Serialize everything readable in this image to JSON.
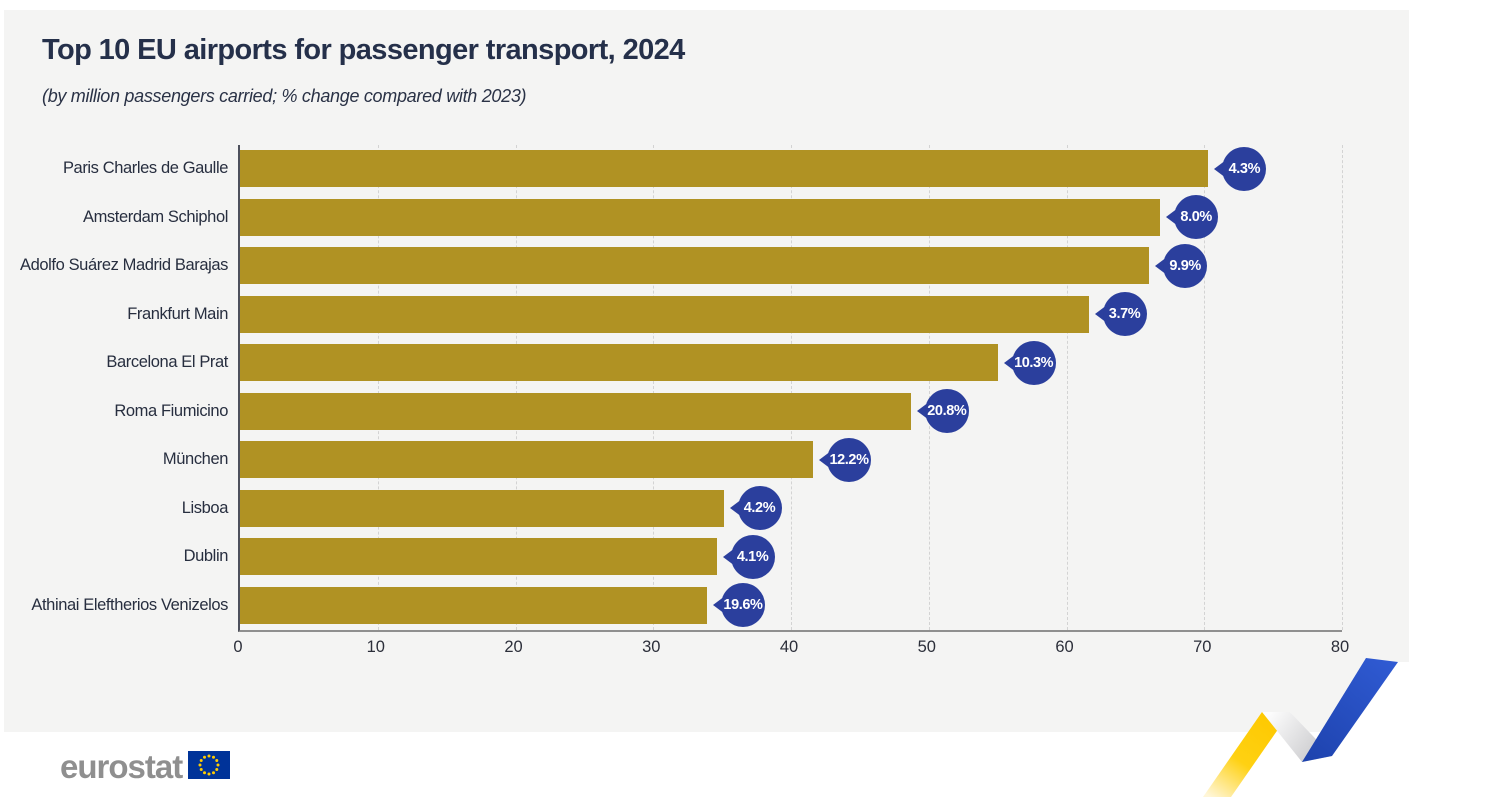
{
  "title": "Top 10 EU airports for passenger transport, 2024",
  "subtitle": "(by million passengers carried; % change compared with 2023)",
  "chart_data": {
    "type": "bar",
    "orientation": "horizontal",
    "categories": [
      "Paris Charles de Gaulle",
      "Amsterdam Schiphol",
      "Adolfo Suárez Madrid Barajas",
      "Frankfurt Main",
      "Barcelona El Prat",
      "Roma Fiumicino",
      "München",
      "Lisboa",
      "Dublin",
      "Athinai Eleftherios Venizelos"
    ],
    "series": [
      {
        "name": "million passengers carried",
        "values": [
          70.3,
          66.8,
          66.0,
          61.6,
          55.0,
          48.7,
          41.6,
          35.1,
          34.6,
          33.9
        ]
      },
      {
        "name": "% change compared with 2023",
        "values": [
          4.3,
          8.0,
          9.9,
          3.7,
          10.3,
          20.8,
          12.2,
          4.2,
          4.1,
          19.6
        ]
      }
    ],
    "badge_labels": [
      "4.3%",
      "8.0%",
      "9.9%",
      "3.7%",
      "10.3%",
      "20.8%",
      "12.2%",
      "4.2%",
      "4.1%",
      "19.6%"
    ],
    "xlabel": "",
    "ylabel": "",
    "xlim": [
      0,
      80
    ],
    "x_ticks": [
      0,
      10,
      20,
      30,
      40,
      50,
      60,
      70,
      80
    ],
    "grid": "vertical-dashed",
    "legend": "none"
  },
  "colors": {
    "bar": "#b09223",
    "badge": "#2b3f9d",
    "badge_text": "#ffffff",
    "card_background": "#f4f4f3",
    "title_text": "#25304a",
    "grid_line": "#d3d3d3",
    "axis_left": "#4d505c",
    "axis_bottom": "#8f8f8f",
    "ribbon_yellow": "#ffd112",
    "ribbon_blue": "#2a51c8",
    "eu_flag_blue": "#003399",
    "eu_flag_stars": "#ffcc00"
  },
  "footer": {
    "brand": "eurostat"
  }
}
